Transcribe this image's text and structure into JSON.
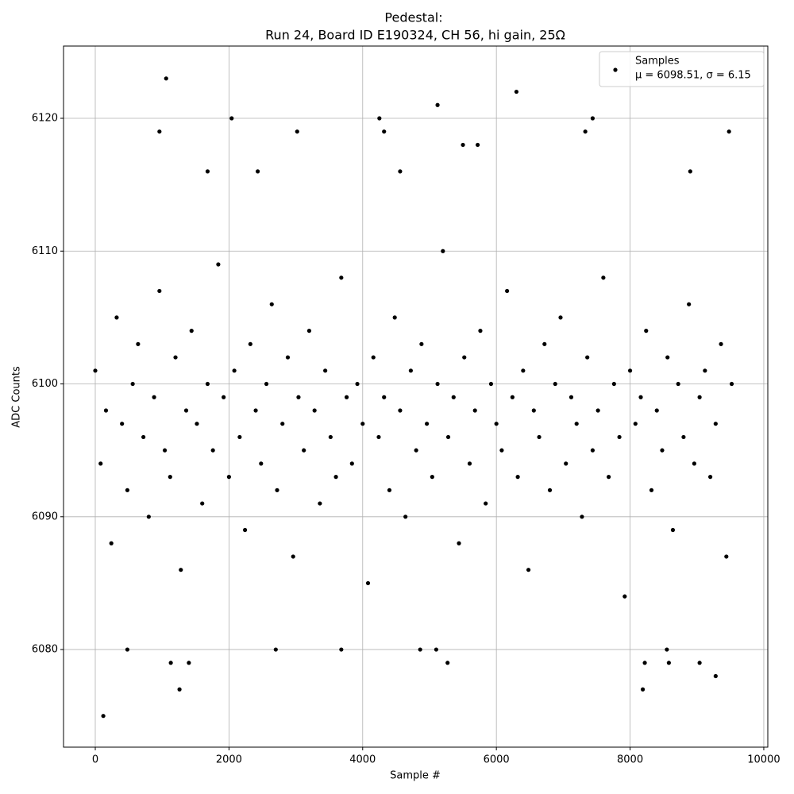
{
  "chart_data": {
    "type": "scatter",
    "title": "Pedestal:",
    "subtitle": "Run 24, Board ID E190324, CH 56, hi gain, 25Ω",
    "x_label": "Sample #",
    "y_label": "ADC Counts",
    "xlim": [
      -475,
      10060
    ],
    "ylim": [
      6072.65,
      6125.44
    ],
    "xticks": [
      0,
      2000,
      4000,
      6000,
      8000,
      10000
    ],
    "yticks": [
      6080,
      6090,
      6100,
      6110,
      6120
    ],
    "grid": true,
    "legend_position": "upper right",
    "legend_note": "μ = 6098.51, σ = 6.15",
    "series": [
      {
        "name": "Samples",
        "color": "#000000",
        "x": [
          0,
          80,
          160,
          240,
          320,
          400,
          480,
          560,
          640,
          720,
          800,
          880,
          960,
          1040,
          1120,
          1200,
          1280,
          1360,
          1440,
          1520,
          1600,
          1680,
          1760,
          1840,
          1920,
          2000,
          2080,
          2160,
          2240,
          2320,
          2400,
          2480,
          2560,
          2640,
          2720,
          2800,
          2880,
          2960,
          3040,
          3120,
          3200,
          3280,
          3360,
          3440,
          3520,
          3600,
          3680,
          3760,
          3840,
          3920,
          4000,
          4080,
          4160,
          4240,
          4320,
          4400,
          4480,
          4560,
          4640,
          4720,
          4800,
          4880,
          4960,
          5040,
          5120,
          5200,
          5280,
          5360,
          5440,
          5520,
          5600,
          5680,
          5760,
          5840,
          5920,
          6000,
          6080,
          6160,
          6240,
          6320,
          6400,
          6480,
          6560,
          6640,
          6720,
          6800,
          6880,
          6960,
          7040,
          7120,
          7200,
          7280,
          7360,
          7440,
          7520,
          7600,
          7680,
          7760,
          7840,
          7920,
          8000,
          8080,
          8160,
          8240,
          8320,
          8400,
          8480,
          8560,
          8640,
          8720,
          8800,
          8880,
          8960,
          9040,
          9120,
          9200,
          9280,
          9360,
          9440,
          9520,
          120,
          1060,
          960,
          2040,
          5120,
          6300,
          4250,
          7440,
          9480,
          1260,
          8190,
          9280,
          480,
          2700,
          3680,
          4860,
          5100,
          8550,
          1130,
          1400,
          5270,
          8580,
          9040,
          8220,
          3020,
          7330,
          4320,
          5500,
          5720,
          8900,
          1680,
          2430,
          4560
        ],
        "values": [
          6101,
          6094,
          6098,
          6088,
          6105,
          6097,
          6092,
          6100,
          6103,
          6096,
          6090,
          6099,
          6107,
          6095,
          6093,
          6102,
          6086,
          6098,
          6104,
          6097,
          6091,
          6100,
          6095,
          6109,
          6099,
          6093,
          6101,
          6096,
          6089,
          6103,
          6098,
          6094,
          6100,
          6106,
          6092,
          6097,
          6102,
          6087,
          6099,
          6095,
          6104,
          6098,
          6091,
          6101,
          6096,
          6093,
          6108,
          6099,
          6094,
          6100,
          6097,
          6085,
          6102,
          6096,
          6099,
          6092,
          6105,
          6098,
          6090,
          6101,
          6095,
          6103,
          6097,
          6093,
          6100,
          6110,
          6096,
          6099,
          6088,
          6102,
          6094,
          6098,
          6104,
          6091,
          6100,
          6097,
          6095,
          6107,
          6099,
          6093,
          6101,
          6086,
          6098,
          6096,
          6103,
          6092,
          6100,
          6105,
          6094,
          6099,
          6097,
          6090,
          6102,
          6095,
          6098,
          6108,
          6093,
          6100,
          6096,
          6084,
          6101,
          6097,
          6099,
          6104,
          6092,
          6098,
          6095,
          6102,
          6089,
          6100,
          6096,
          6106,
          6094,
          6099,
          6101,
          6093,
          6097,
          6103,
          6087,
          6100,
          6075,
          6123,
          6119,
          6120,
          6121,
          6122,
          6120,
          6120,
          6119,
          6077,
          6077,
          6078,
          6080,
          6080,
          6080,
          6080,
          6080,
          6080,
          6079,
          6079,
          6079,
          6079,
          6079,
          6079,
          6119,
          6119,
          6119,
          6118,
          6118,
          6116,
          6116,
          6116,
          6116
        ]
      }
    ]
  }
}
